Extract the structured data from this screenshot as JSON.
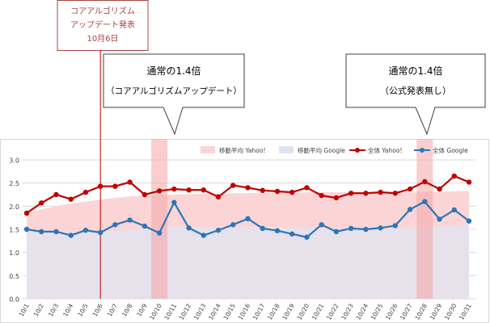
{
  "chart_data": {
    "type": "line",
    "title": "",
    "xlabel": "",
    "ylabel": "",
    "ylim": [
      0,
      3.0
    ],
    "yticks": [
      "0.0",
      "0.5",
      "1.0",
      "1.5",
      "2.0",
      "2.5",
      "3.0"
    ],
    "grid": true,
    "legend_position": "top-right",
    "categories": [
      "10/1",
      "10/2",
      "10/3",
      "10/4",
      "10/5",
      "10/6",
      "10/7",
      "10/8",
      "10/9",
      "10/10",
      "10/11",
      "10/12",
      "10/13",
      "10/14",
      "10/15",
      "10/16",
      "10/17",
      "10/18",
      "10/19",
      "10/20",
      "10/21",
      "10/22",
      "10/23",
      "10/24",
      "10/25",
      "10/26",
      "10/27",
      "10/28",
      "10/29",
      "10/30",
      "10/31"
    ],
    "series": [
      {
        "name": "移動平均 Yahoo!",
        "kind": "area",
        "color": "#fbd5d5",
        "values": [
          1.85,
          1.93,
          2.0,
          2.06,
          2.1,
          2.14,
          2.18,
          2.21,
          2.23,
          2.24,
          2.25,
          2.26,
          2.27,
          2.27,
          2.28,
          2.28,
          2.29,
          2.29,
          2.29,
          2.3,
          2.3,
          2.3,
          2.3,
          2.3,
          2.3,
          2.3,
          2.3,
          2.31,
          2.31,
          2.32,
          2.33
        ]
      },
      {
        "name": "移動平均 Google",
        "kind": "area",
        "color": "#dfe4f2",
        "values": [
          1.5,
          1.48,
          1.46,
          1.45,
          1.45,
          1.45,
          1.47,
          1.5,
          1.52,
          1.53,
          1.56,
          1.55,
          1.55,
          1.54,
          1.55,
          1.56,
          1.56,
          1.55,
          1.54,
          1.53,
          1.52,
          1.52,
          1.51,
          1.51,
          1.52,
          1.53,
          1.55,
          1.57,
          1.58,
          1.58,
          1.6
        ]
      },
      {
        "name": "全体 Yahoo!",
        "kind": "line",
        "color": "#c00000",
        "values": [
          1.85,
          2.07,
          2.25,
          2.15,
          2.3,
          2.43,
          2.43,
          2.52,
          2.25,
          2.33,
          2.37,
          2.35,
          2.35,
          2.2,
          2.45,
          2.4,
          2.34,
          2.32,
          2.3,
          2.4,
          2.23,
          2.18,
          2.28,
          2.28,
          2.3,
          2.28,
          2.37,
          2.53,
          2.37,
          2.65,
          2.52
        ]
      },
      {
        "name": "全体 Google",
        "kind": "line",
        "color": "#2e75b6",
        "values": [
          1.5,
          1.45,
          1.45,
          1.37,
          1.48,
          1.43,
          1.6,
          1.7,
          1.57,
          1.42,
          2.08,
          1.53,
          1.37,
          1.48,
          1.6,
          1.73,
          1.52,
          1.47,
          1.4,
          1.33,
          1.6,
          1.45,
          1.52,
          1.5,
          1.53,
          1.58,
          1.93,
          2.1,
          1.72,
          1.92,
          1.68
        ]
      }
    ],
    "highlight_columns": [
      "10/10",
      "10/28"
    ],
    "annotations": [
      {
        "id": "update",
        "title_line1": "コアアルゴリズム",
        "title_line2": "アップデート発表",
        "title_line3": "10月6日",
        "at": "10/6"
      },
      {
        "id": "callout1",
        "line1": "通常の1.4倍",
        "line2": "（コアアルゴリズムアップデート）",
        "at": "10/10"
      },
      {
        "id": "callout2",
        "line1": "通常の1.4倍",
        "line2": "（公式発表無し）",
        "at": "10/28"
      }
    ]
  }
}
